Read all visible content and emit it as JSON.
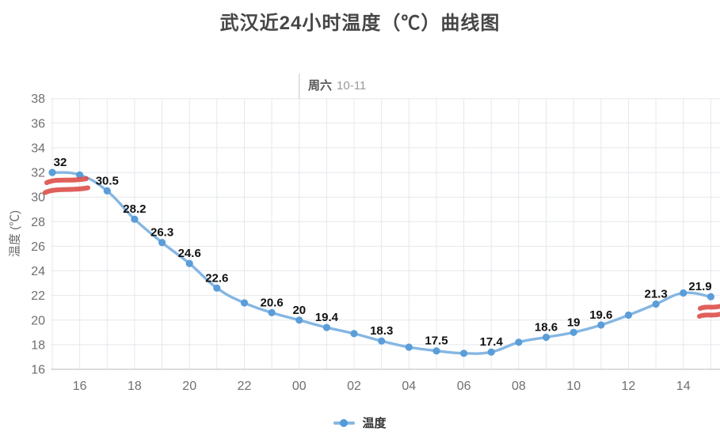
{
  "title": "武汉近24小时温度（℃）曲线图",
  "day_marker": {
    "weekday": "周六",
    "date": "10-11"
  },
  "y_axis": {
    "name": "温度 (℃)"
  },
  "legend": {
    "series_label": "温度"
  },
  "colors": {
    "line": "#85b6e3",
    "point": "#5a9dd8",
    "data_label": "#111111",
    "grid": "#e4e8ec",
    "axis_line": "#c2c7cc",
    "tick_text": "#6f6f6f",
    "title_text": "#464646",
    "annotation_red": "#dc4a44"
  },
  "chart_data": {
    "type": "line",
    "title": "武汉近24小时温度（℃）曲线图",
    "xlabel": "",
    "ylabel": "温度 (℃)",
    "ylim": [
      16,
      38
    ],
    "y_ticks": [
      16,
      18,
      20,
      22,
      24,
      26,
      28,
      30,
      32,
      34,
      36,
      38
    ],
    "x_tick_labels": [
      "16",
      "18",
      "20",
      "22",
      "00",
      "02",
      "04",
      "06",
      "08",
      "10",
      "12",
      "14"
    ],
    "grid": true,
    "legend_position": "bottom",
    "day_separator": {
      "at_hour": "00",
      "label": "周六 10-11"
    },
    "series": [
      {
        "name": "温度",
        "x": [
          "15",
          "16",
          "17",
          "18",
          "19",
          "20",
          "21",
          "22",
          "23",
          "00",
          "01",
          "02",
          "03",
          "04",
          "05",
          "06",
          "07",
          "08",
          "09",
          "10",
          "11",
          "12",
          "13",
          "14",
          "15"
        ],
        "values": [
          32,
          31.8,
          30.5,
          28.2,
          26.3,
          24.6,
          22.6,
          21.4,
          20.6,
          20,
          19.4,
          18.9,
          18.3,
          17.8,
          17.5,
          17.3,
          17.4,
          18.2,
          18.6,
          19,
          19.6,
          20.4,
          21.3,
          22.2,
          21.9
        ],
        "point_labels": [
          "32",
          "",
          "30.5",
          "28.2",
          "26.3",
          "24.6",
          "22.6",
          "",
          "20.6",
          "20",
          "19.4",
          "",
          "18.3",
          "",
          "17.5",
          "",
          "17.4",
          "",
          "18.6",
          "19",
          "19.6",
          "",
          "21.3",
          "",
          "21.9"
        ]
      }
    ],
    "annotations": [
      {
        "type": "red-scribble",
        "strokes": 2,
        "near": "first-point"
      },
      {
        "type": "red-scribble",
        "strokes": 2,
        "near": "last-point"
      }
    ]
  }
}
